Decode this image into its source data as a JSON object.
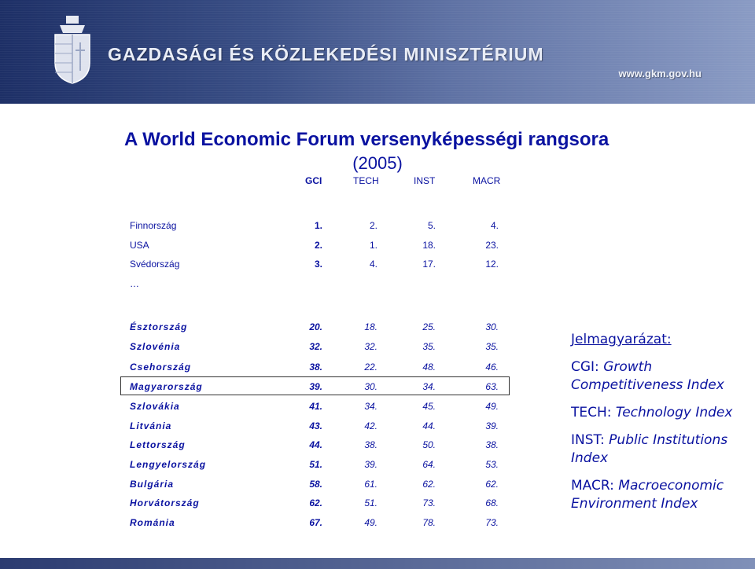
{
  "header": {
    "ministry_name": "GAZDASÁGI ÉS KÖZLEKEDÉSI MINISZTÉRIUM",
    "website": "www.gkm.gov.hu"
  },
  "title": "A World Economic Forum versenyképességi rangsora",
  "subtitle": "(2005)",
  "columns": [
    "GCI",
    "TECH",
    "INST",
    "MACR"
  ],
  "top_rows": [
    {
      "country": "Finnország",
      "gci": "1.",
      "tech": "2.",
      "inst": "5.",
      "macr": "4."
    },
    {
      "country": "USA",
      "gci": "2.",
      "tech": "1.",
      "inst": "18.",
      "macr": "23."
    },
    {
      "country": "Svédország",
      "gci": "3.",
      "tech": "4.",
      "inst": "17.",
      "macr": "12."
    }
  ],
  "ellipsis": "…",
  "low_rows": [
    {
      "country": "Észtország",
      "gci": "20.",
      "tech": "18.",
      "inst": "25.",
      "macr": "30."
    },
    {
      "country": "Szlovénia",
      "gci": "32.",
      "tech": "32.",
      "inst": "35.",
      "macr": "35."
    },
    {
      "country": "Csehország",
      "gci": "38.",
      "tech": "22.",
      "inst": "48.",
      "macr": "46."
    },
    {
      "country": "Magyarország",
      "gci": "39.",
      "tech": "30.",
      "inst": "34.",
      "macr": "63."
    },
    {
      "country": "Szlovákia",
      "gci": "41.",
      "tech": "34.",
      "inst": "45.",
      "macr": "49."
    },
    {
      "country": "Litvánia",
      "gci": "43.",
      "tech": "42.",
      "inst": "44.",
      "macr": "39."
    },
    {
      "country": "Lettország",
      "gci": "44.",
      "tech": "38.",
      "inst": "50.",
      "macr": "38."
    },
    {
      "country": "Lengyelország",
      "gci": "51.",
      "tech": "39.",
      "inst": "64.",
      "macr": "53."
    },
    {
      "country": "Bulgária",
      "gci": "58.",
      "tech": "61.",
      "inst": "62.",
      "macr": "62."
    },
    {
      "country": "Horvátország",
      "gci": "62.",
      "tech": "51.",
      "inst": "73.",
      "macr": "68."
    },
    {
      "country": "Románia",
      "gci": "67.",
      "tech": "49.",
      "inst": "78.",
      "macr": "73."
    }
  ],
  "legend": {
    "title": "Jelmagyarázat:",
    "items": [
      {
        "abbr": "CGI:",
        "text_line1": "Growth",
        "text_line2": "Competitiveness Index"
      },
      {
        "abbr": "TECH:",
        "text_line1": "Technology Index",
        "text_line2": ""
      },
      {
        "abbr": "INST:",
        "text_line1": "Public Institutions",
        "text_line2": "Index"
      },
      {
        "abbr": "MACR:",
        "text_line1": "Macroeconomic",
        "text_line2": "Environment Index"
      }
    ]
  },
  "colors": {
    "text": "#0a12a0",
    "banner": "#1d2f66"
  }
}
